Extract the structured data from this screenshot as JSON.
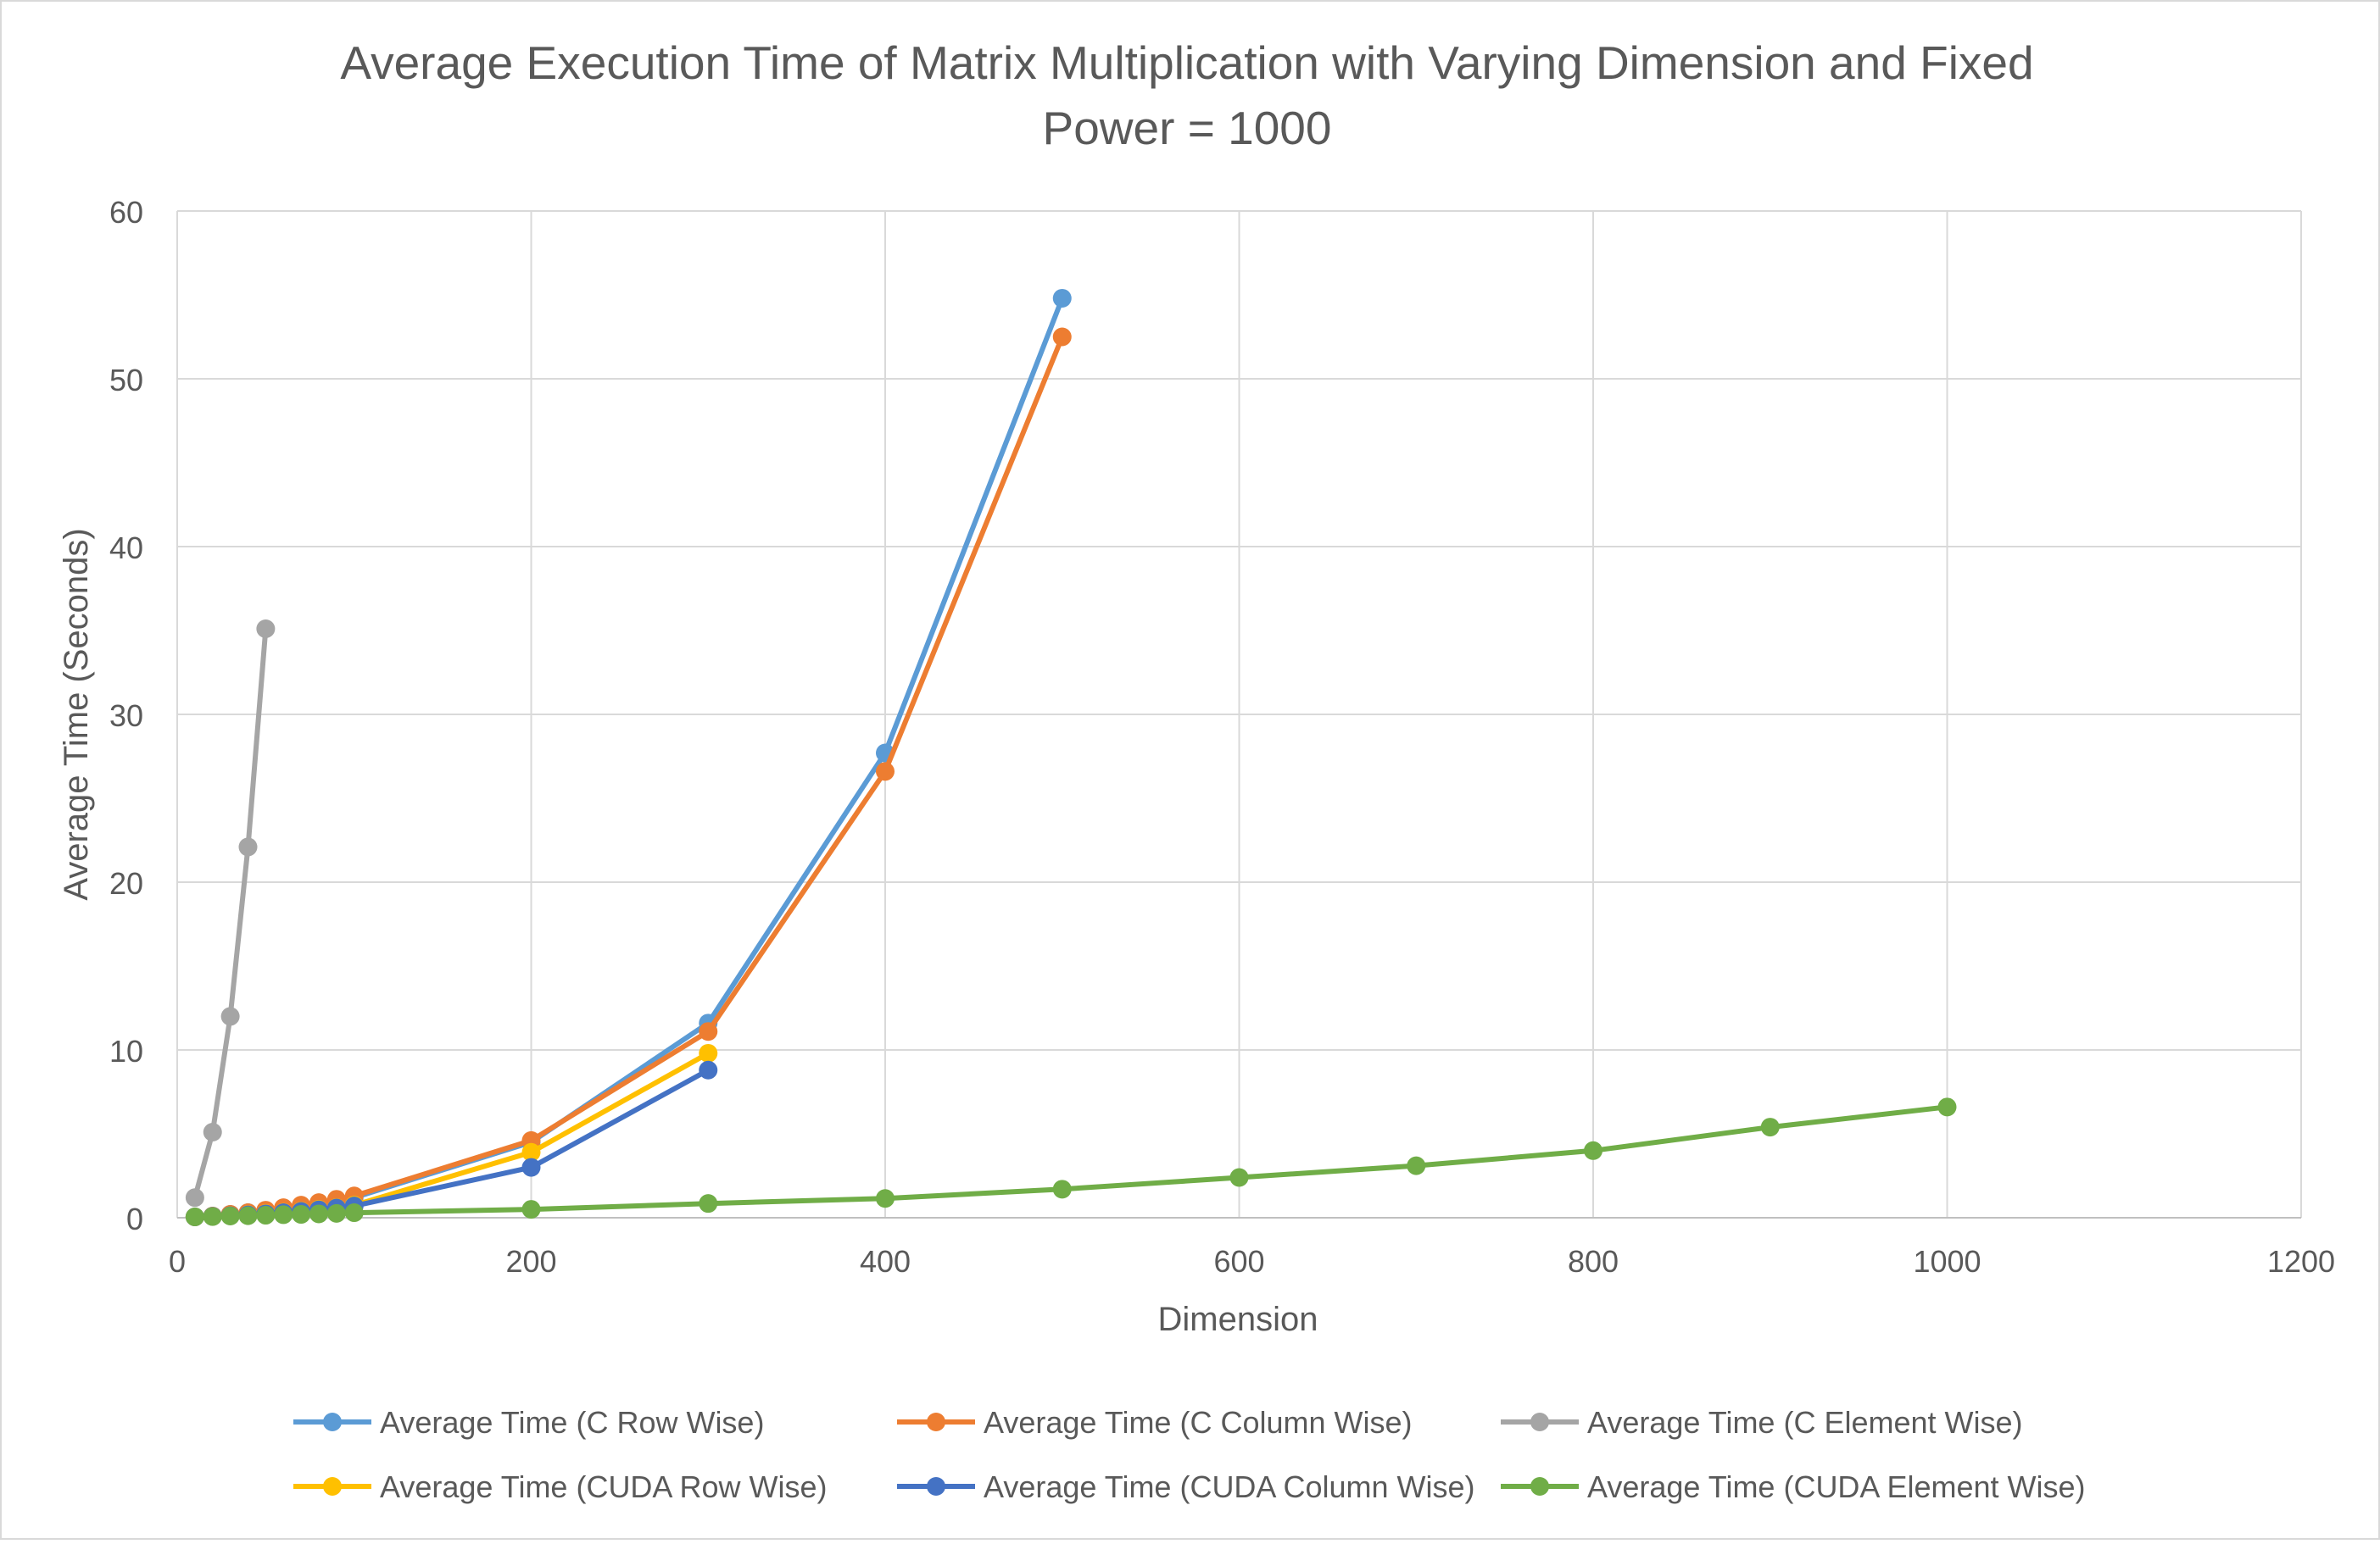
{
  "chart_data": {
    "type": "line",
    "title": "Average Execution Time of Matrix Multiplication with Varying Dimension and Fixed Power = 1000",
    "title_lines": [
      "Average Execution Time of Matrix Multiplication with Varying Dimension and Fixed",
      "Power = 1000"
    ],
    "xlabel": "Dimension",
    "ylabel": "Average Time (Seconds)",
    "xlim": [
      0,
      1200
    ],
    "ylim": [
      0,
      60
    ],
    "x_ticks": [
      0,
      200,
      400,
      600,
      800,
      1000,
      1200
    ],
    "y_ticks": [
      0,
      10,
      20,
      30,
      40,
      50,
      60
    ],
    "grid": true,
    "legend_position": "bottom",
    "series": [
      {
        "name": "Average Time (C Row Wise)",
        "color": "#5B9BD5",
        "x": [
          10,
          20,
          30,
          40,
          50,
          60,
          70,
          80,
          90,
          100,
          200,
          300,
          400,
          500
        ],
        "y": [
          0.05,
          0.1,
          0.2,
          0.3,
          0.4,
          0.5,
          0.65,
          0.8,
          1.0,
          1.2,
          4.5,
          11.6,
          27.7,
          54.8
        ]
      },
      {
        "name": "Average Time (C Column Wise)",
        "color": "#ED7D31",
        "x": [
          10,
          20,
          30,
          40,
          50,
          60,
          70,
          80,
          90,
          100,
          200,
          300,
          400,
          500
        ],
        "y": [
          0.05,
          0.1,
          0.2,
          0.3,
          0.45,
          0.6,
          0.75,
          0.9,
          1.1,
          1.3,
          4.6,
          11.1,
          26.6,
          52.5
        ]
      },
      {
        "name": "Average Time (C Element Wise)",
        "color": "#A5A5A5",
        "x": [
          10,
          20,
          30,
          40,
          50
        ],
        "y": [
          1.2,
          5.1,
          12.0,
          22.1,
          35.1
        ]
      },
      {
        "name": "Average Time (CUDA Row Wise)",
        "color": "#FFC000",
        "x": [
          10,
          20,
          30,
          40,
          50,
          60,
          70,
          80,
          90,
          100,
          200,
          300
        ],
        "y": [
          0.05,
          0.08,
          0.12,
          0.18,
          0.25,
          0.32,
          0.4,
          0.5,
          0.6,
          0.75,
          3.9,
          9.8
        ]
      },
      {
        "name": "Average Time (CUDA Column Wise)",
        "color": "#4472C4",
        "x": [
          10,
          20,
          30,
          40,
          50,
          60,
          70,
          80,
          90,
          100,
          200,
          300
        ],
        "y": [
          0.05,
          0.08,
          0.12,
          0.17,
          0.23,
          0.3,
          0.38,
          0.47,
          0.58,
          0.7,
          3.0,
          8.8
        ]
      },
      {
        "name": "Average Time (CUDA Element Wise)",
        "color": "#70AD47",
        "x": [
          10,
          20,
          30,
          40,
          50,
          60,
          70,
          80,
          90,
          100,
          200,
          300,
          400,
          500,
          600,
          700,
          800,
          900,
          1000
        ],
        "y": [
          0.05,
          0.07,
          0.1,
          0.12,
          0.15,
          0.18,
          0.2,
          0.23,
          0.26,
          0.3,
          0.5,
          0.85,
          1.15,
          1.7,
          2.4,
          3.1,
          4.0,
          5.4,
          6.6
        ]
      }
    ]
  }
}
